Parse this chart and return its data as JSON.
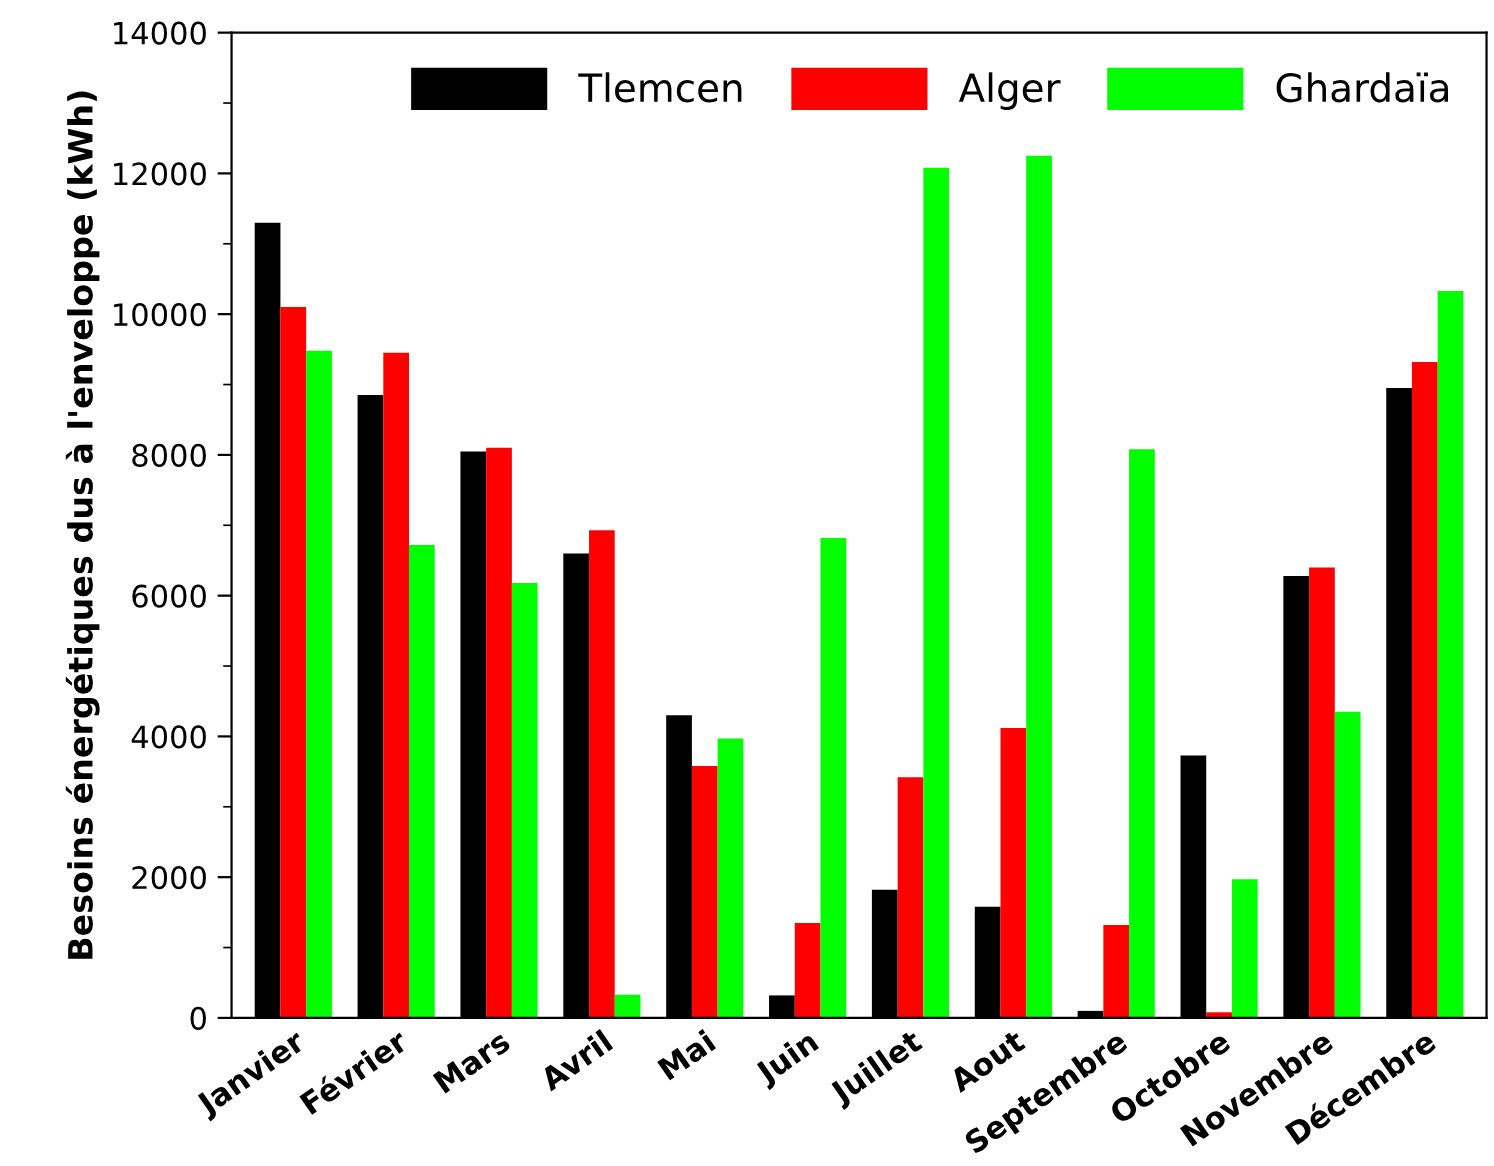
{
  "chart_data": {
    "type": "bar",
    "ylabel": "Besoins énergétiques dus à l'enveloppe (kWh)",
    "categories": [
      "Janvier",
      "Février",
      "Mars",
      "Avril",
      "Mai",
      "Juin",
      "Juillet",
      "Aout",
      "Septembre",
      "Octobre",
      "Novembre",
      "Décembre"
    ],
    "series": [
      {
        "name": "Tlemcen",
        "color": "#000000",
        "values": [
          11300,
          8850,
          8050,
          6600,
          4300,
          320,
          1820,
          1580,
          100,
          3730,
          6280,
          8950
        ]
      },
      {
        "name": "Alger",
        "color": "#ff0000",
        "values": [
          10100,
          9450,
          8100,
          6930,
          3580,
          1350,
          3420,
          4120,
          1320,
          80,
          6400,
          9320
        ]
      },
      {
        "name": "Ghardaïa",
        "color": "#00ff00",
        "values": [
          9480,
          6720,
          6180,
          330,
          3970,
          6820,
          12080,
          12250,
          8080,
          1970,
          4350,
          10330
        ]
      }
    ],
    "ylim": [
      0,
      14000
    ],
    "yticks": [
      0,
      2000,
      4000,
      6000,
      8000,
      10000,
      12000,
      14000
    ],
    "grid": false,
    "legend": "top right"
  }
}
